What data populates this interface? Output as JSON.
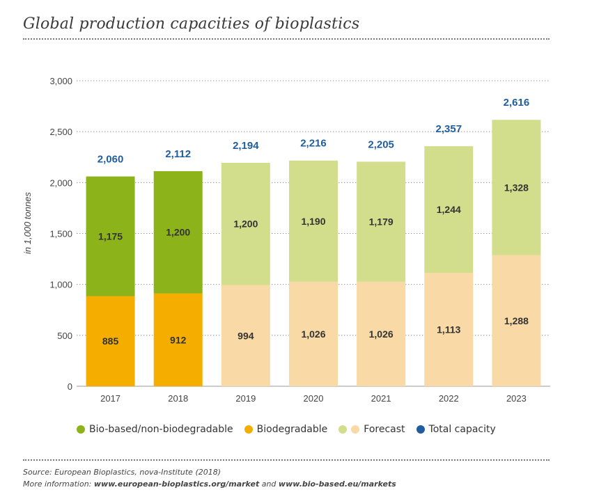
{
  "title": "Global production capacities of bioplastics",
  "colors": {
    "bio_based": "#8db31a",
    "biodegradable": "#f5ad00",
    "forecast_bio_based": "#d3de8c",
    "forecast_biodegradable": "#f9d9a5",
    "total": "#1f5d9e",
    "grid": "#999999",
    "text": "#333333"
  },
  "chart_data": {
    "type": "bar",
    "stacked": true,
    "categories": [
      "2017",
      "2018",
      "2019",
      "2020",
      "2021",
      "2022",
      "2023"
    ],
    "series": [
      {
        "name": "Biodegradable",
        "values": [
          885,
          912,
          994,
          1026,
          1026,
          1113,
          1288
        ]
      },
      {
        "name": "Bio-based/non-biodegradable",
        "values": [
          1175,
          1200,
          1200,
          1190,
          1179,
          1244,
          1328
        ]
      }
    ],
    "totals": [
      2060,
      2112,
      2194,
      2216,
      2205,
      2357,
      2616
    ],
    "total_labels": [
      "2,060",
      "2,112",
      "2,194",
      "2,216",
      "2,205",
      "2,357",
      "2,616"
    ],
    "bottom_labels": [
      "885",
      "912",
      "994",
      "1,026",
      "1,026",
      "1,113",
      "1,288"
    ],
    "top_labels": [
      "1,175",
      "1,200",
      "1,200",
      "1,190",
      "1,179",
      "1,244",
      "1,328"
    ],
    "forecast_from_index": 2,
    "ylabel": "in 1,000 tonnes",
    "ylim": [
      0,
      3000
    ],
    "yticks": [
      0,
      500,
      1000,
      1500,
      2000,
      2500,
      3000
    ],
    "ytick_labels": [
      "0",
      "500",
      "1,000",
      "1,500",
      "2,000",
      "2,500",
      "3,000"
    ],
    "grid": true,
    "legend_position": "bottom"
  },
  "legend": [
    {
      "label": "Bio-based/non-biodegradable",
      "color": "#8db31a"
    },
    {
      "label": "Biodegradable",
      "color": "#f5ad00"
    },
    {
      "label": "Forecast",
      "color": "#d3de8c",
      "color2": "#f9d9a5"
    },
    {
      "label": "Total capacity",
      "color": "#1f5d9e"
    }
  ],
  "source": {
    "line1": "Source: European Bioplastics, nova-Institute (2018)",
    "line2_prefix": "More information: ",
    "link1": "www.european-bioplastics.org/market",
    "and": " and ",
    "link2": "www.bio-based.eu/markets"
  }
}
